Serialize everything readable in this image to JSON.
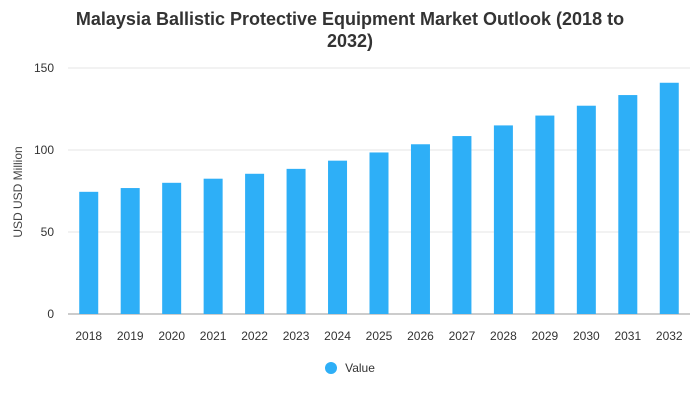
{
  "colors": {
    "bar": "#2eaff7",
    "grid": "#e6e6e6",
    "axis": "#999999"
  },
  "chart_data": {
    "type": "bar",
    "title": "Malaysia Ballistic Protective Equipment Market Outlook (2018 to 2032)",
    "xlabel": "",
    "ylabel": "USD USD Million",
    "categories": [
      "2018",
      "2019",
      "2020",
      "2021",
      "2022",
      "2023",
      "2024",
      "2025",
      "2026",
      "2027",
      "2028",
      "2029",
      "2030",
      "2031",
      "2032"
    ],
    "series": [
      {
        "name": "Value",
        "values": [
          74.5,
          76.8,
          80.0,
          82.5,
          85.5,
          88.5,
          93.5,
          98.5,
          103.5,
          108.5,
          115.0,
          121.0,
          127.0,
          133.5,
          141.0
        ]
      }
    ],
    "ylim": [
      0,
      150
    ],
    "yticks": [
      0,
      50,
      100,
      150
    ],
    "grid": true,
    "legend_position": "bottom"
  }
}
